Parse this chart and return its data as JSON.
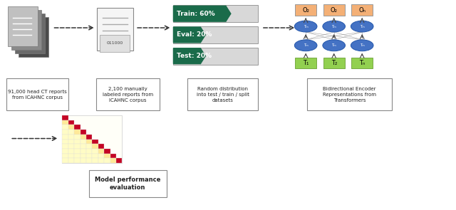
{
  "bg_color": "#ffffff",
  "arrow_color": "#444444",
  "bar_green_dark": "#1a6b4a",
  "bar_labels": [
    "Train: 60%",
    "Eval: 20%",
    "Test: 20%"
  ],
  "bar_fills_60": 0.62,
  "bar_fills_20": 0.32,
  "bert_output_color": "#f4a460",
  "bert_hidden_color": "#4472c4",
  "bert_input_color": "#92d050",
  "bert_output_labels": [
    "O₂",
    "O₂",
    "Oₙ"
  ],
  "bert_input_labels": [
    "T₁",
    "T₂",
    "Tₙ"
  ],
  "bert_hidden_label": "Tₘ",
  "text_labels": [
    "91,000 head CT reports\nfrom ICAHNC corpus",
    "2,100 manually\nlabeled reports from\nICAHNC corpus",
    "Random distribution\ninto test / train / split\ndatasets",
    "Bidirectional Encoder\nRepresentations from\nTransformers"
  ],
  "bottom_label": "Model performance\nevaluation"
}
